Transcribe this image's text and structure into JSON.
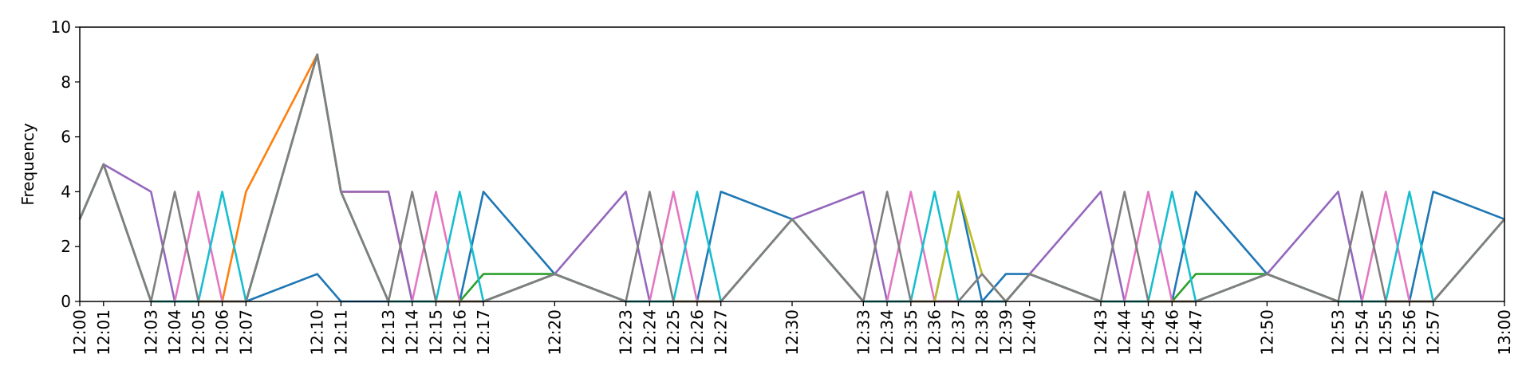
{
  "chart_data": {
    "type": "line",
    "title": "",
    "xlabel": "",
    "ylabel": "Frequency",
    "ylim": [
      0,
      10
    ],
    "xlim": [
      "12:00",
      "13:00"
    ],
    "grid": false,
    "y_ticks": [
      0,
      2,
      4,
      6,
      8,
      10
    ],
    "x_ticks": [
      "12:00",
      "12:01",
      "12:03",
      "12:04",
      "12:05",
      "12:06",
      "12:07",
      "12:10",
      "12:11",
      "12:13",
      "12:14",
      "12:15",
      "12:16",
      "12:17",
      "12:20",
      "12:23",
      "12:24",
      "12:25",
      "12:26",
      "12:27",
      "12:30",
      "12:33",
      "12:34",
      "12:35",
      "12:36",
      "12:37",
      "12:38",
      "12:39",
      "12:40",
      "12:43",
      "12:44",
      "12:45",
      "12:46",
      "12:47",
      "12:50",
      "12:53",
      "12:54",
      "12:55",
      "12:56",
      "12:57",
      "13:00"
    ],
    "series": [
      {
        "color": "#1f77b4",
        "x": [
          "12:00",
          "12:01",
          "12:03",
          "12:04",
          "12:05",
          "12:06",
          "12:07",
          "12:10",
          "12:11",
          "12:13",
          "12:14",
          "12:15",
          "12:16",
          "12:17",
          "12:20",
          "12:23",
          "12:24",
          "12:25",
          "12:26",
          "12:27",
          "12:30",
          "12:33",
          "12:34",
          "12:35",
          "12:36",
          "12:37",
          "12:38",
          "12:39",
          "12:40",
          "12:43",
          "12:44",
          "12:45",
          "12:46",
          "12:47",
          "12:50",
          "12:53",
          "12:54",
          "12:55",
          "12:56",
          "12:57",
          "13:00"
        ],
        "values": [
          3,
          5,
          0,
          0,
          0,
          0,
          0,
          1,
          0,
          0,
          0,
          0,
          0,
          4,
          1,
          0,
          0,
          0,
          0,
          4,
          3,
          0,
          0,
          0,
          0,
          4,
          0,
          1,
          1,
          0,
          0,
          0,
          0,
          4,
          1,
          0,
          0,
          0,
          0,
          4,
          3
        ]
      },
      {
        "color": "#ff7f0e",
        "x": [
          "12:00",
          "12:01",
          "12:03",
          "12:04",
          "12:05",
          "12:06",
          "12:07",
          "12:10",
          "12:11",
          "12:13",
          "12:14",
          "12:15",
          "12:16",
          "12:17",
          "12:20",
          "12:23",
          "12:24",
          "12:25",
          "12:26",
          "12:27",
          "12:30",
          "12:33",
          "12:34",
          "12:35",
          "12:36",
          "12:37",
          "12:38",
          "12:39",
          "12:40",
          "12:43",
          "12:44",
          "12:45",
          "12:46",
          "12:47",
          "12:50",
          "12:53",
          "12:54",
          "12:55",
          "12:56",
          "12:57",
          "13:00"
        ],
        "values": [
          3,
          5,
          0,
          0,
          0,
          0,
          4,
          9,
          4,
          4,
          0,
          0,
          0,
          0,
          1,
          0,
          0,
          0,
          0,
          0,
          3,
          0,
          0,
          0,
          0,
          0,
          0,
          0,
          1,
          0,
          0,
          0,
          0,
          0,
          1,
          0,
          0,
          0,
          0,
          0,
          3
        ]
      },
      {
        "color": "#2ca02c",
        "x": [
          "12:00",
          "12:01",
          "12:03",
          "12:04",
          "12:05",
          "12:06",
          "12:07",
          "12:10",
          "12:11",
          "12:13",
          "12:14",
          "12:15",
          "12:16",
          "12:17",
          "12:20",
          "12:23",
          "12:24",
          "12:25",
          "12:26",
          "12:27",
          "12:30",
          "12:33",
          "12:34",
          "12:35",
          "12:36",
          "12:37",
          "12:38",
          "12:39",
          "12:40",
          "12:43",
          "12:44",
          "12:45",
          "12:46",
          "12:47",
          "12:50",
          "12:53",
          "12:54",
          "12:55",
          "12:56",
          "12:57",
          "13:00"
        ],
        "values": [
          3,
          5,
          0,
          0,
          0,
          0,
          0,
          9,
          4,
          0,
          0,
          0,
          0,
          1,
          1,
          0,
          0,
          0,
          0,
          0,
          3,
          0,
          0,
          0,
          0,
          0,
          0,
          0,
          1,
          0,
          0,
          0,
          0,
          1,
          1,
          0,
          0,
          0,
          0,
          0,
          3
        ]
      },
      {
        "color": "#d62728",
        "x": [
          "12:00",
          "12:01",
          "12:03",
          "12:04",
          "12:05",
          "12:06",
          "12:07",
          "12:10",
          "12:11",
          "12:13",
          "12:14",
          "12:15",
          "12:16",
          "12:17",
          "12:20",
          "12:23",
          "12:24",
          "12:25",
          "12:26",
          "12:27",
          "12:30",
          "12:33",
          "12:34",
          "12:35",
          "12:36",
          "12:37",
          "12:38",
          "12:39",
          "12:40",
          "12:43",
          "12:44",
          "12:45",
          "12:46",
          "12:47",
          "12:50",
          "12:53",
          "12:54",
          "12:55",
          "12:56",
          "12:57",
          "13:00"
        ],
        "values": [
          3,
          5,
          0,
          0,
          0,
          0,
          0,
          9,
          4,
          0,
          0,
          0,
          0,
          0,
          1,
          0,
          0,
          0,
          0,
          0,
          3,
          0,
          0,
          0,
          0,
          0,
          0,
          0,
          1,
          0,
          0,
          0,
          0,
          0,
          1,
          0,
          0,
          0,
          0,
          0,
          3
        ]
      },
      {
        "color": "#9467bd",
        "x": [
          "12:00",
          "12:01",
          "12:03",
          "12:04",
          "12:05",
          "12:06",
          "12:07",
          "12:10",
          "12:11",
          "12:13",
          "12:14",
          "12:15",
          "12:16",
          "12:17",
          "12:20",
          "12:23",
          "12:24",
          "12:25",
          "12:26",
          "12:27",
          "12:30",
          "12:33",
          "12:34",
          "12:35",
          "12:36",
          "12:37",
          "12:38",
          "12:39",
          "12:40",
          "12:43",
          "12:44",
          "12:45",
          "12:46",
          "12:47",
          "12:50",
          "12:53",
          "12:54",
          "12:55",
          "12:56",
          "12:57",
          "13:00"
        ],
        "values": [
          3,
          5,
          4,
          0,
          0,
          0,
          0,
          9,
          4,
          4,
          0,
          0,
          0,
          0,
          1,
          4,
          0,
          0,
          0,
          0,
          3,
          4,
          0,
          0,
          0,
          0,
          0,
          0,
          1,
          4,
          0,
          0,
          0,
          0,
          1,
          4,
          0,
          0,
          0,
          0,
          3
        ]
      },
      {
        "color": "#8c564b",
        "x": [
          "12:00",
          "12:01",
          "12:03",
          "12:04",
          "12:05",
          "12:06",
          "12:07",
          "12:10",
          "12:11",
          "12:13",
          "12:14",
          "12:15",
          "12:16",
          "12:17",
          "12:20",
          "12:23",
          "12:24",
          "12:25",
          "12:26",
          "12:27",
          "12:30",
          "12:33",
          "12:34",
          "12:35",
          "12:36",
          "12:37",
          "12:38",
          "12:39",
          "12:40",
          "12:43",
          "12:44",
          "12:45",
          "12:46",
          "12:47",
          "12:50",
          "12:53",
          "12:54",
          "12:55",
          "12:56",
          "12:57",
          "13:00"
        ],
        "values": [
          3,
          5,
          0,
          0,
          0,
          0,
          0,
          9,
          4,
          0,
          0,
          0,
          0,
          0,
          1,
          0,
          0,
          0,
          0,
          0,
          3,
          0,
          0,
          0,
          0,
          0,
          0,
          0,
          1,
          0,
          0,
          0,
          0,
          0,
          1,
          0,
          0,
          0,
          0,
          0,
          3
        ]
      },
      {
        "color": "#e377c2",
        "x": [
          "12:00",
          "12:01",
          "12:03",
          "12:04",
          "12:05",
          "12:06",
          "12:07",
          "12:10",
          "12:11",
          "12:13",
          "12:14",
          "12:15",
          "12:16",
          "12:17",
          "12:20",
          "12:23",
          "12:24",
          "12:25",
          "12:26",
          "12:27",
          "12:30",
          "12:33",
          "12:34",
          "12:35",
          "12:36",
          "12:37",
          "12:38",
          "12:39",
          "12:40",
          "12:43",
          "12:44",
          "12:45",
          "12:46",
          "12:47",
          "12:50",
          "12:53",
          "12:54",
          "12:55",
          "12:56",
          "12:57",
          "13:00"
        ],
        "values": [
          3,
          5,
          0,
          0,
          4,
          0,
          0,
          9,
          4,
          0,
          0,
          4,
          0,
          0,
          1,
          0,
          0,
          4,
          0,
          0,
          3,
          0,
          0,
          4,
          0,
          0,
          0,
          0,
          1,
          0,
          0,
          4,
          0,
          0,
          1,
          0,
          0,
          4,
          0,
          0,
          3
        ]
      },
      {
        "color": "#bcbd22",
        "x": [
          "12:00",
          "12:01",
          "12:03",
          "12:04",
          "12:05",
          "12:06",
          "12:07",
          "12:10",
          "12:11",
          "12:13",
          "12:14",
          "12:15",
          "12:16",
          "12:17",
          "12:20",
          "12:23",
          "12:24",
          "12:25",
          "12:26",
          "12:27",
          "12:30",
          "12:33",
          "12:34",
          "12:35",
          "12:36",
          "12:37",
          "12:38",
          "12:39",
          "12:40",
          "12:43",
          "12:44",
          "12:45",
          "12:46",
          "12:47",
          "12:50",
          "12:53",
          "12:54",
          "12:55",
          "12:56",
          "12:57",
          "13:00"
        ],
        "values": [
          3,
          5,
          0,
          0,
          0,
          0,
          0,
          9,
          4,
          0,
          0,
          0,
          0,
          0,
          1,
          0,
          0,
          0,
          0,
          0,
          3,
          0,
          0,
          0,
          0,
          4,
          1,
          0,
          1,
          0,
          0,
          0,
          0,
          0,
          1,
          0,
          0,
          0,
          0,
          0,
          3
        ]
      },
      {
        "color": "#17becf",
        "x": [
          "12:00",
          "12:01",
          "12:03",
          "12:04",
          "12:05",
          "12:06",
          "12:07",
          "12:10",
          "12:11",
          "12:13",
          "12:14",
          "12:15",
          "12:16",
          "12:17",
          "12:20",
          "12:23",
          "12:24",
          "12:25",
          "12:26",
          "12:27",
          "12:30",
          "12:33",
          "12:34",
          "12:35",
          "12:36",
          "12:37",
          "12:38",
          "12:39",
          "12:40",
          "12:43",
          "12:44",
          "12:45",
          "12:46",
          "12:47",
          "12:50",
          "12:53",
          "12:54",
          "12:55",
          "12:56",
          "12:57",
          "13:00"
        ],
        "values": [
          3,
          5,
          0,
          0,
          0,
          4,
          0,
          9,
          4,
          0,
          0,
          0,
          4,
          0,
          1,
          0,
          0,
          0,
          4,
          0,
          3,
          0,
          0,
          0,
          4,
          0,
          0,
          0,
          1,
          0,
          0,
          0,
          4,
          0,
          1,
          0,
          0,
          0,
          4,
          0,
          3
        ]
      },
      {
        "color": "#7f7f7f",
        "x": [
          "12:00",
          "12:01",
          "12:03",
          "12:04",
          "12:05",
          "12:06",
          "12:07",
          "12:10",
          "12:11",
          "12:13",
          "12:14",
          "12:15",
          "12:16",
          "12:17",
          "12:20",
          "12:23",
          "12:24",
          "12:25",
          "12:26",
          "12:27",
          "12:30",
          "12:33",
          "12:34",
          "12:35",
          "12:36",
          "12:37",
          "12:38",
          "12:39",
          "12:40",
          "12:43",
          "12:44",
          "12:45",
          "12:46",
          "12:47",
          "12:50",
          "12:53",
          "12:54",
          "12:55",
          "12:56",
          "12:57",
          "13:00"
        ],
        "values": [
          3,
          5,
          0,
          4,
          0,
          0,
          0,
          9,
          4,
          0,
          4,
          0,
          0,
          0,
          1,
          0,
          4,
          0,
          0,
          0,
          3,
          0,
          4,
          0,
          0,
          0,
          1,
          0,
          1,
          0,
          4,
          0,
          0,
          0,
          1,
          0,
          4,
          0,
          0,
          0,
          3
        ]
      }
    ]
  }
}
